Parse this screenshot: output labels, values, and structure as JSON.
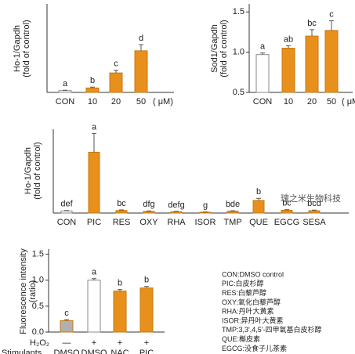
{
  "chart_data": [
    {
      "type": "bar",
      "y_label": [
        "Ho-1/Gapdh",
        "(fold of control)"
      ],
      "categories": [
        "CON",
        "10",
        "20",
        "50"
      ],
      "x_unit": "( μM)",
      "values": [
        2,
        5,
        22,
        47
      ],
      "errors": [
        0.5,
        1,
        3,
        7
      ],
      "annotations": [
        "a",
        "b",
        "c",
        "d"
      ],
      "colors": [
        "#ffffff",
        "#e8901c",
        "#e8901c",
        "#e8901c"
      ],
      "ylim": [
        0,
        100
      ]
    },
    {
      "type": "bar",
      "y_label": [
        "Sod1/Gapdh",
        "(fold of control)"
      ],
      "categories": [
        "CON",
        "10",
        "20",
        "50"
      ],
      "x_unit": "( μM)",
      "values": [
        0.97,
        1.05,
        1.2,
        1.27
      ],
      "errors": [
        0.02,
        0.03,
        0.08,
        0.12
      ],
      "annotations": [
        "a",
        "ab",
        "bc",
        "c"
      ],
      "colors": [
        "#ffffff",
        "#e8901c",
        "#e8901c",
        "#e8901c"
      ],
      "ylim": [
        0.5,
        1.6
      ],
      "yticks": [
        0.5,
        {
          "value": 1.0,
          "label": "1.0"
        },
        1.5
      ]
    },
    {
      "type": "bar",
      "y_label": [
        "Ho-1/Gapdh",
        "(fold of control)"
      ],
      "categories": [
        "CON",
        "PIC",
        "RES",
        "OXY",
        "RHA",
        "ISOR",
        "TMP",
        "QUE",
        "EGCG",
        "SESA"
      ],
      "values": [
        1,
        29,
        1.2,
        0.8,
        0.6,
        0.4,
        0.9,
        6,
        1.3,
        1.1
      ],
      "errors": [
        0.2,
        9,
        0.3,
        0.2,
        0.2,
        0.1,
        0.2,
        1,
        0.3,
        0.3
      ],
      "annotations": [
        "def",
        "a",
        "bc",
        "dfg",
        "defg",
        "g",
        "bde",
        "b",
        "bc",
        "bcd"
      ],
      "colors": [
        "#ffffff",
        "#e8901c",
        "#e8901c",
        "#e8901c",
        "#e8901c",
        "#e8901c",
        "#e8901c",
        "#e8901c",
        "#e8901c",
        "#e8901c"
      ],
      "ylim": [
        0,
        40
      ]
    },
    {
      "type": "bar",
      "y_label": [
        "Fluorescence intensity",
        "(ratio)"
      ],
      "categories_name": "Stimulants",
      "categories": [
        "DMSO",
        "DMSO",
        "NAC",
        "PIC"
      ],
      "second_row": {
        "name": "H₂O₂",
        "labels": [
          "—",
          "+",
          "+",
          "+"
        ]
      },
      "values": [
        0.22,
        1.0,
        0.79,
        0.85
      ],
      "errors": [
        0.02,
        0.03,
        0.03,
        0.03
      ],
      "annotations": [
        "c",
        "a",
        "b",
        "b"
      ],
      "colors": [
        "#b0b0b0",
        "#ffffff",
        "#e8901c",
        "#e8901c"
      ],
      "ylim": [
        0,
        1.6
      ],
      "yticks": [
        {
          "value": 0,
          "label": "0.0"
        },
        0.5,
        {
          "value": 1.0,
          "label": "1.0"
        },
        1.5
      ]
    }
  ],
  "notes": [
    "CON:DMSO control",
    "PIC:白皮杉醇",
    "RES:白藜芦醇",
    "OXY:氧化白藜芦醇",
    "RHA:丹叶大黄素",
    "ISOR:异丹叶大黄素",
    "TMP:3,3',4,5'-四甲氧基白皮杉醇",
    "QUE:槲皮素",
    "EGCG:没食子儿茶素"
  ],
  "watermark": "瑰之米生物科技"
}
